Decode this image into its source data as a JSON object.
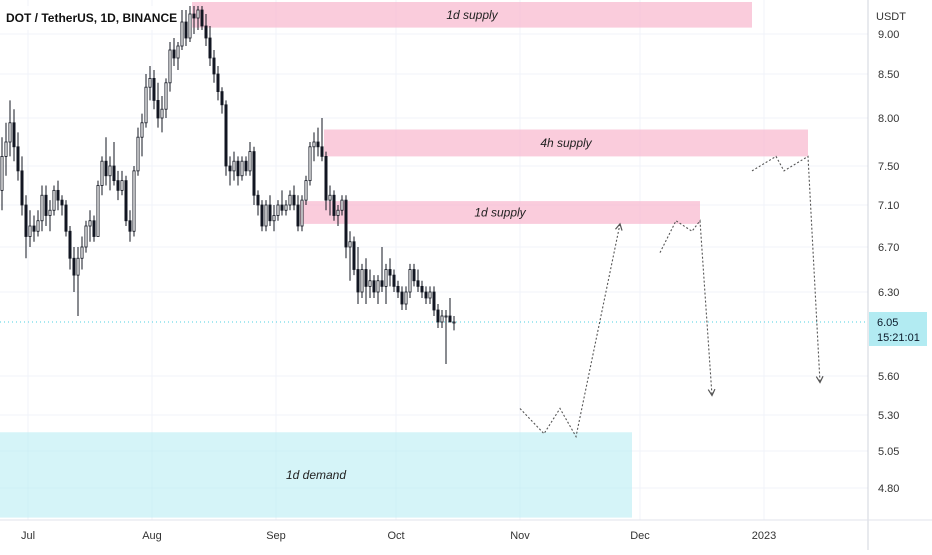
{
  "symbol_title": "DOT / TetherUS, 1D, BINANCE",
  "currency_label": "USDT",
  "last_price": {
    "value": "6.05",
    "countdown": "15:21:01"
  },
  "colors": {
    "supply_zone": "#f8bbd0",
    "demand_zone": "#b2ebf2",
    "price_badge": "#b2ebf2",
    "candle": "#131722",
    "projection_line": "#555555",
    "last_price_line": "#4dd0e1"
  },
  "chart_data": {
    "type": "candlestick",
    "x_ticks": [
      "Jul",
      "Aug",
      "Sep",
      "Oct",
      "Nov",
      "Dec",
      "2023"
    ],
    "y_ticks": [
      "9.00",
      "8.50",
      "8.00",
      "7.50",
      "7.10",
      "6.70",
      "6.30",
      "5.60",
      "5.30",
      "5.05",
      "4.80"
    ],
    "y_range": [
      4.6,
      9.35
    ],
    "x_range": [
      "2022-06-24",
      "2023-01-27"
    ],
    "zones": [
      {
        "label": "1d supply",
        "kind": "supply",
        "start": "2022-08-11",
        "end": "2022-12-29",
        "low": 9.08,
        "high": 9.4
      },
      {
        "label": "4h supply",
        "kind": "supply",
        "start": "2022-09-13",
        "end": "2023-01-12",
        "low": 7.6,
        "high": 7.88
      },
      {
        "label": "1d supply",
        "kind": "supply",
        "start": "2022-09-07",
        "end": "2022-12-16",
        "low": 6.92,
        "high": 7.14
      },
      {
        "label": "1d demand",
        "kind": "demand",
        "start": "2022-06-24",
        "end": "2022-11-29",
        "low": 4.6,
        "high": 5.18
      }
    ],
    "projection_paths": [
      [
        [
          "2022-11-01",
          5.35
        ],
        [
          "2022-11-07",
          5.17
        ],
        [
          "2022-11-11",
          5.35
        ],
        [
          "2022-11-15",
          5.15
        ],
        [
          "2022-11-26",
          6.92
        ]
      ],
      [
        [
          "2022-12-06",
          6.65
        ],
        [
          "2022-12-10",
          6.95
        ],
        [
          "2022-12-14",
          6.85
        ],
        [
          "2022-12-16",
          6.95
        ],
        [
          "2022-12-19",
          5.45
        ]
      ],
      [
        [
          "2022-12-29",
          7.45
        ],
        [
          "2023-01-04",
          7.6
        ],
        [
          "2023-01-06",
          7.45
        ],
        [
          "2023-01-12",
          7.6
        ],
        [
          "2023-01-15",
          5.55
        ]
      ]
    ],
    "candles": [
      [
        "2022-06-24",
        7.25,
        7.8,
        7.05,
        7.6
      ],
      [
        "2022-06-25",
        7.6,
        7.95,
        7.4,
        7.75
      ],
      [
        "2022-06-26",
        7.75,
        8.2,
        7.6,
        7.95
      ],
      [
        "2022-06-27",
        7.95,
        8.1,
        7.55,
        7.7
      ],
      [
        "2022-06-28",
        7.7,
        7.85,
        7.35,
        7.45
      ],
      [
        "2022-06-29",
        7.45,
        7.6,
        7.0,
        7.1
      ],
      [
        "2022-06-30",
        7.1,
        7.2,
        6.6,
        6.8
      ],
      [
        "2022-07-01",
        6.8,
        7.05,
        6.7,
        6.9
      ],
      [
        "2022-07-02",
        6.9,
        7.0,
        6.75,
        6.85
      ],
      [
        "2022-07-03",
        6.85,
        7.05,
        6.8,
        6.95
      ],
      [
        "2022-07-04",
        6.95,
        7.3,
        6.85,
        7.2
      ],
      [
        "2022-07-05",
        7.2,
        7.3,
        6.9,
        7.0
      ],
      [
        "2022-07-06",
        7.0,
        7.15,
        6.85,
        7.05
      ],
      [
        "2022-07-07",
        7.05,
        7.3,
        7.0,
        7.25
      ],
      [
        "2022-07-08",
        7.25,
        7.35,
        7.05,
        7.15
      ],
      [
        "2022-07-09",
        7.15,
        7.2,
        7.0,
        7.1
      ],
      [
        "2022-07-10",
        7.1,
        7.15,
        6.8,
        6.85
      ],
      [
        "2022-07-11",
        6.85,
        6.9,
        6.5,
        6.6
      ],
      [
        "2022-07-12",
        6.6,
        6.7,
        6.3,
        6.45
      ],
      [
        "2022-07-13",
        6.45,
        6.7,
        6.1,
        6.6
      ],
      [
        "2022-07-14",
        6.6,
        6.8,
        6.5,
        6.7
      ],
      [
        "2022-07-15",
        6.7,
        6.95,
        6.65,
        6.9
      ],
      [
        "2022-07-16",
        6.9,
        7.05,
        6.75,
        6.95
      ],
      [
        "2022-07-17",
        6.95,
        7.0,
        6.75,
        6.8
      ],
      [
        "2022-07-18",
        6.8,
        7.35,
        6.8,
        7.3
      ],
      [
        "2022-07-19",
        7.3,
        7.6,
        7.2,
        7.55
      ],
      [
        "2022-07-20",
        7.55,
        7.8,
        7.3,
        7.4
      ],
      [
        "2022-07-21",
        7.4,
        7.6,
        7.25,
        7.5
      ],
      [
        "2022-07-22",
        7.5,
        7.75,
        7.3,
        7.35
      ],
      [
        "2022-07-23",
        7.35,
        7.45,
        7.15,
        7.25
      ],
      [
        "2022-07-24",
        7.25,
        7.45,
        7.2,
        7.35
      ],
      [
        "2022-07-25",
        7.35,
        7.4,
        6.9,
        6.95
      ],
      [
        "2022-07-26",
        6.95,
        7.05,
        6.75,
        6.85
      ],
      [
        "2022-07-27",
        6.85,
        7.5,
        6.8,
        7.45
      ],
      [
        "2022-07-28",
        7.45,
        7.9,
        7.4,
        7.8
      ],
      [
        "2022-07-29",
        7.8,
        8.05,
        7.6,
        7.95
      ],
      [
        "2022-07-30",
        7.95,
        8.5,
        7.9,
        8.35
      ],
      [
        "2022-07-31",
        8.35,
        8.6,
        8.2,
        8.45
      ],
      [
        "2022-08-01",
        8.45,
        8.55,
        8.1,
        8.2
      ],
      [
        "2022-08-02",
        8.2,
        8.4,
        7.9,
        8.0
      ],
      [
        "2022-08-03",
        8.0,
        8.25,
        7.85,
        8.1
      ],
      [
        "2022-08-04",
        8.1,
        8.45,
        8.0,
        8.4
      ],
      [
        "2022-08-05",
        8.4,
        8.9,
        8.3,
        8.8
      ],
      [
        "2022-08-06",
        8.8,
        8.95,
        8.6,
        8.7
      ],
      [
        "2022-08-07",
        8.7,
        8.9,
        8.55,
        8.85
      ],
      [
        "2022-08-08",
        8.85,
        9.3,
        8.8,
        9.15
      ],
      [
        "2022-08-09",
        9.15,
        9.3,
        8.85,
        8.95
      ],
      [
        "2022-08-10",
        8.95,
        9.35,
        8.9,
        9.25
      ],
      [
        "2022-08-11",
        9.25,
        9.35,
        9.0,
        9.2
      ],
      [
        "2022-08-12",
        9.2,
        9.35,
        9.05,
        9.3
      ],
      [
        "2022-08-13",
        9.3,
        9.35,
        9.05,
        9.1
      ],
      [
        "2022-08-14",
        9.1,
        9.25,
        8.85,
        8.95
      ],
      [
        "2022-08-15",
        8.95,
        9.1,
        8.6,
        8.7
      ],
      [
        "2022-08-16",
        8.7,
        8.8,
        8.4,
        8.5
      ],
      [
        "2022-08-17",
        8.5,
        8.6,
        8.2,
        8.3
      ],
      [
        "2022-08-18",
        8.3,
        8.35,
        8.05,
        8.15
      ],
      [
        "2022-08-19",
        8.15,
        8.2,
        7.4,
        7.5
      ],
      [
        "2022-08-20",
        7.5,
        7.6,
        7.3,
        7.45
      ],
      [
        "2022-08-21",
        7.45,
        7.65,
        7.35,
        7.55
      ],
      [
        "2022-08-22",
        7.55,
        7.6,
        7.3,
        7.4
      ],
      [
        "2022-08-23",
        7.4,
        7.6,
        7.35,
        7.55
      ],
      [
        "2022-08-24",
        7.55,
        7.6,
        7.4,
        7.45
      ],
      [
        "2022-08-25",
        7.45,
        7.75,
        7.4,
        7.65
      ],
      [
        "2022-08-26",
        7.65,
        7.7,
        7.1,
        7.2
      ],
      [
        "2022-08-27",
        7.2,
        7.25,
        7.0,
        7.1
      ],
      [
        "2022-08-28",
        7.1,
        7.15,
        6.85,
        6.9
      ],
      [
        "2022-08-29",
        6.9,
        7.15,
        6.85,
        7.1
      ],
      [
        "2022-08-30",
        7.1,
        7.2,
        6.9,
        6.95
      ],
      [
        "2022-08-31",
        6.95,
        7.1,
        6.85,
        7.0
      ],
      [
        "2022-09-01",
        7.0,
        7.15,
        6.95,
        7.1
      ],
      [
        "2022-09-02",
        7.1,
        7.25,
        7.0,
        7.05
      ],
      [
        "2022-09-03",
        7.05,
        7.15,
        7.0,
        7.1
      ],
      [
        "2022-09-04",
        7.1,
        7.25,
        7.05,
        7.2
      ],
      [
        "2022-09-05",
        7.2,
        7.3,
        7.05,
        7.1
      ],
      [
        "2022-09-06",
        7.1,
        7.2,
        6.85,
        6.9
      ],
      [
        "2022-09-07",
        6.9,
        7.2,
        6.85,
        7.15
      ],
      [
        "2022-09-08",
        7.15,
        7.4,
        7.1,
        7.35
      ],
      [
        "2022-09-09",
        7.35,
        7.75,
        7.3,
        7.7
      ],
      [
        "2022-09-10",
        7.7,
        7.85,
        7.55,
        7.75
      ],
      [
        "2022-09-11",
        7.75,
        7.9,
        7.6,
        7.7
      ],
      [
        "2022-09-12",
        7.7,
        8.0,
        7.55,
        7.6
      ],
      [
        "2022-09-13",
        7.6,
        7.65,
        7.05,
        7.15
      ],
      [
        "2022-09-14",
        7.15,
        7.3,
        7.0,
        7.2
      ],
      [
        "2022-09-15",
        7.2,
        7.25,
        6.95,
        7.0
      ],
      [
        "2022-09-16",
        7.0,
        7.1,
        6.9,
        7.05
      ],
      [
        "2022-09-17",
        7.05,
        7.2,
        7.0,
        7.15
      ],
      [
        "2022-09-18",
        7.15,
        7.2,
        6.6,
        6.7
      ],
      [
        "2022-09-19",
        6.7,
        6.85,
        6.4,
        6.75
      ],
      [
        "2022-09-20",
        6.75,
        6.8,
        6.45,
        6.5
      ],
      [
        "2022-09-21",
        6.5,
        6.7,
        6.2,
        6.3
      ],
      [
        "2022-09-22",
        6.3,
        6.55,
        6.25,
        6.5
      ],
      [
        "2022-09-23",
        6.5,
        6.6,
        6.2,
        6.35
      ],
      [
        "2022-09-24",
        6.35,
        6.5,
        6.25,
        6.4
      ],
      [
        "2022-09-25",
        6.4,
        6.45,
        6.25,
        6.3
      ],
      [
        "2022-09-26",
        6.3,
        6.45,
        6.2,
        6.4
      ],
      [
        "2022-09-27",
        6.4,
        6.7,
        6.3,
        6.35
      ],
      [
        "2022-09-28",
        6.35,
        6.55,
        6.2,
        6.5
      ],
      [
        "2022-09-29",
        6.5,
        6.6,
        6.35,
        6.45
      ],
      [
        "2022-09-30",
        6.45,
        6.5,
        6.3,
        6.35
      ],
      [
        "2022-10-01",
        6.35,
        6.4,
        6.25,
        6.3
      ],
      [
        "2022-10-02",
        6.3,
        6.35,
        6.15,
        6.2
      ],
      [
        "2022-10-03",
        6.2,
        6.35,
        6.15,
        6.3
      ],
      [
        "2022-10-04",
        6.3,
        6.55,
        6.25,
        6.5
      ],
      [
        "2022-10-05",
        6.5,
        6.55,
        6.35,
        6.4
      ],
      [
        "2022-10-06",
        6.4,
        6.5,
        6.3,
        6.35
      ],
      [
        "2022-10-07",
        6.35,
        6.4,
        6.25,
        6.3
      ],
      [
        "2022-10-08",
        6.3,
        6.35,
        6.2,
        6.25
      ],
      [
        "2022-10-09",
        6.25,
        6.35,
        6.2,
        6.3
      ],
      [
        "2022-10-10",
        6.3,
        6.35,
        6.1,
        6.15
      ],
      [
        "2022-10-11",
        6.15,
        6.2,
        6.0,
        6.05
      ],
      [
        "2022-10-12",
        6.05,
        6.15,
        6.0,
        6.1
      ],
      [
        "2022-10-13",
        6.1,
        6.15,
        5.7,
        6.1
      ],
      [
        "2022-10-14",
        6.1,
        6.25,
        6.05,
        6.05
      ],
      [
        "2022-10-15",
        6.05,
        6.1,
        5.98,
        6.05
      ]
    ]
  }
}
